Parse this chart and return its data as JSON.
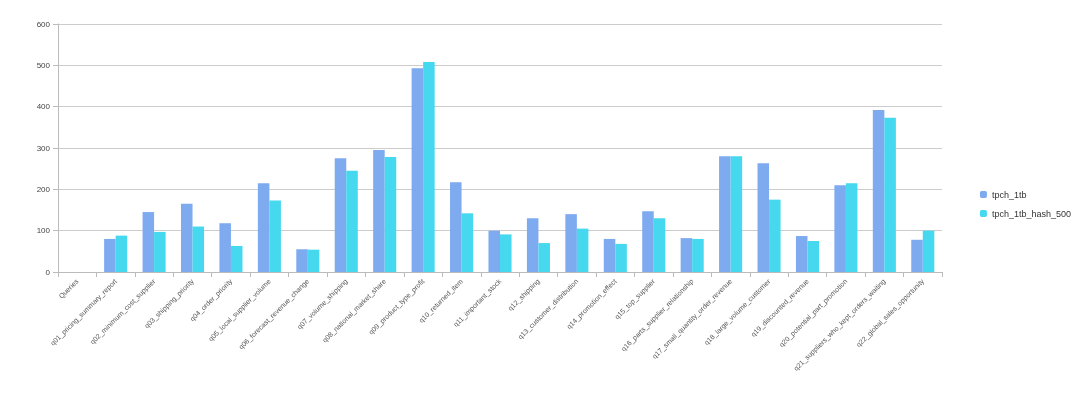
{
  "chart_data": {
    "type": "bar",
    "categories": [
      "Queries",
      "q01_pricing_summary_report",
      "q02_minimum_cost_supplier",
      "q03_shipping_priority",
      "q04_order_priority",
      "q05_local_supplier_volume",
      "q06_forecast_revenue_change",
      "q07_volume_shipping",
      "q08_national_market_share",
      "q09_product_type_profit",
      "q10_returned_item",
      "q11_important_stock",
      "q12_shipping",
      "q13_customer_distribution",
      "q14_promotion_effect",
      "q15_top_supplier",
      "q16_parts_supplier_relationship",
      "q17_small_quantity_order_revenue",
      "q18_large_volume_customer",
      "q19_discounted_revenue",
      "q20_potential_part_promotion",
      "q21_suppliers_who_kept_orders_waiting",
      "q22_global_sales_opportunity"
    ],
    "series": [
      {
        "name": "tpch_1tb",
        "color": "#7eaaf0",
        "values": [
          null,
          80,
          145,
          165,
          118,
          215,
          55,
          275,
          295,
          493,
          217,
          100,
          130,
          140,
          80,
          147,
          82,
          280,
          263,
          87,
          210,
          392,
          78
        ]
      },
      {
        "name": "tpch_1tb_hash_500",
        "color": "#45d8ee",
        "values": [
          null,
          88,
          97,
          110,
          63,
          173,
          54,
          245,
          278,
          508,
          142,
          91,
          70,
          105,
          68,
          130,
          80,
          280,
          175,
          75,
          215,
          373,
          100
        ]
      }
    ],
    "ylim": [
      0,
      600
    ],
    "yticks": [
      0,
      100,
      200,
      300,
      400,
      500,
      600
    ],
    "grid": "y",
    "legend": "right"
  }
}
